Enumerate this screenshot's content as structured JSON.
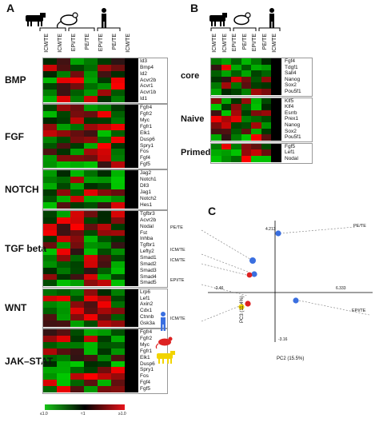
{
  "panelA": {
    "letter": "A",
    "columns": [
      "ICM/TE",
      "ICM/TE",
      "EPI/TE",
      "PE/TE",
      "EPI/TE",
      "PE/TE",
      "ICM/TE"
    ],
    "groups": [
      {
        "name": "BMP",
        "genes": [
          "Id3",
          "Bmp4",
          "Id2",
          "Acvr2b",
          "Acvr1",
          "Acvr1b",
          "Id1"
        ]
      },
      {
        "name": "FGF",
        "genes": [
          "Fgfr4",
          "Fgfr2",
          "Myc",
          "Fgfr1",
          "Elk1",
          "Dusp6",
          "Spry1",
          "Fos",
          "Fgf4",
          "Fgf5"
        ]
      },
      {
        "name": "NOTCH",
        "genes": [
          "Jag2",
          "Notch1",
          "Dll3",
          "Jag1",
          "Notch2",
          "Hes1"
        ]
      },
      {
        "name": "TGF beta",
        "genes": [
          "Tgfbr3",
          "Acvr2b",
          "Nodal",
          "Fst",
          "Inhba",
          "Tgfbr1",
          "Lefty2",
          "Smad1",
          "Smad2",
          "Smad3",
          "Smad4",
          "Smad5"
        ]
      },
      {
        "name": "WNT",
        "genes": [
          "Lrp6",
          "Lef1",
          "Axin2",
          "Cdx1",
          "Ctnnb",
          "Gsk3a"
        ]
      },
      {
        "name": "JAK–STAT",
        "genes": [
          "Fgfr4",
          "Fgfr2",
          "Myc",
          "Fgfr1",
          "Elk1",
          "Dusp6",
          "Spry1",
          "Fos",
          "Fgf4",
          "Fgf5"
        ]
      }
    ],
    "scale": {
      "low": "≤1.0",
      "mid": "≈1",
      "high": "≥1.0"
    }
  },
  "panelB": {
    "letter": "B",
    "columns": [
      "ICM/TE",
      "ICM/TE",
      "EPI/TE",
      "PE/TE",
      "EPI/TE",
      "PE/TE",
      "ICM/TE"
    ],
    "groups": [
      {
        "name": "core",
        "genes": [
          "Fgf4",
          "Tdgf1",
          "Sall4",
          "Nanog",
          "Sox2",
          "Pou5f1"
        ]
      },
      {
        "name": "Naive",
        "genes": [
          "Klf5",
          "Klf4",
          "Esrrb",
          "Prex1",
          "Nanog",
          "Sox2",
          "Pou5f1"
        ]
      },
      {
        "name": "Primed",
        "genes": [
          "Fgf5",
          "Lef1",
          "Nodal"
        ]
      }
    ]
  },
  "panelC": {
    "letter": "C",
    "labels": [
      "PE/TE",
      "ICM/TE",
      "ICM/TE",
      "EPI/TE",
      "ICM/TE",
      "PE/TE",
      "EPI/TE"
    ],
    "xaxis_label": "PC2 (15.5%)",
    "yaxis_label": "PC3 (11.4%)",
    "ticks": {
      "top": "4.213",
      "right": "6.333",
      "left": "-2.46",
      "bottom": "-3.16"
    },
    "colors": {
      "human": "#3a6fe0",
      "mouse": "#dd2222",
      "cow": "#f2d400"
    }
  },
  "colors": {
    "red": "#e8141b",
    "green": "#18c418",
    "black": "#000000"
  }
}
